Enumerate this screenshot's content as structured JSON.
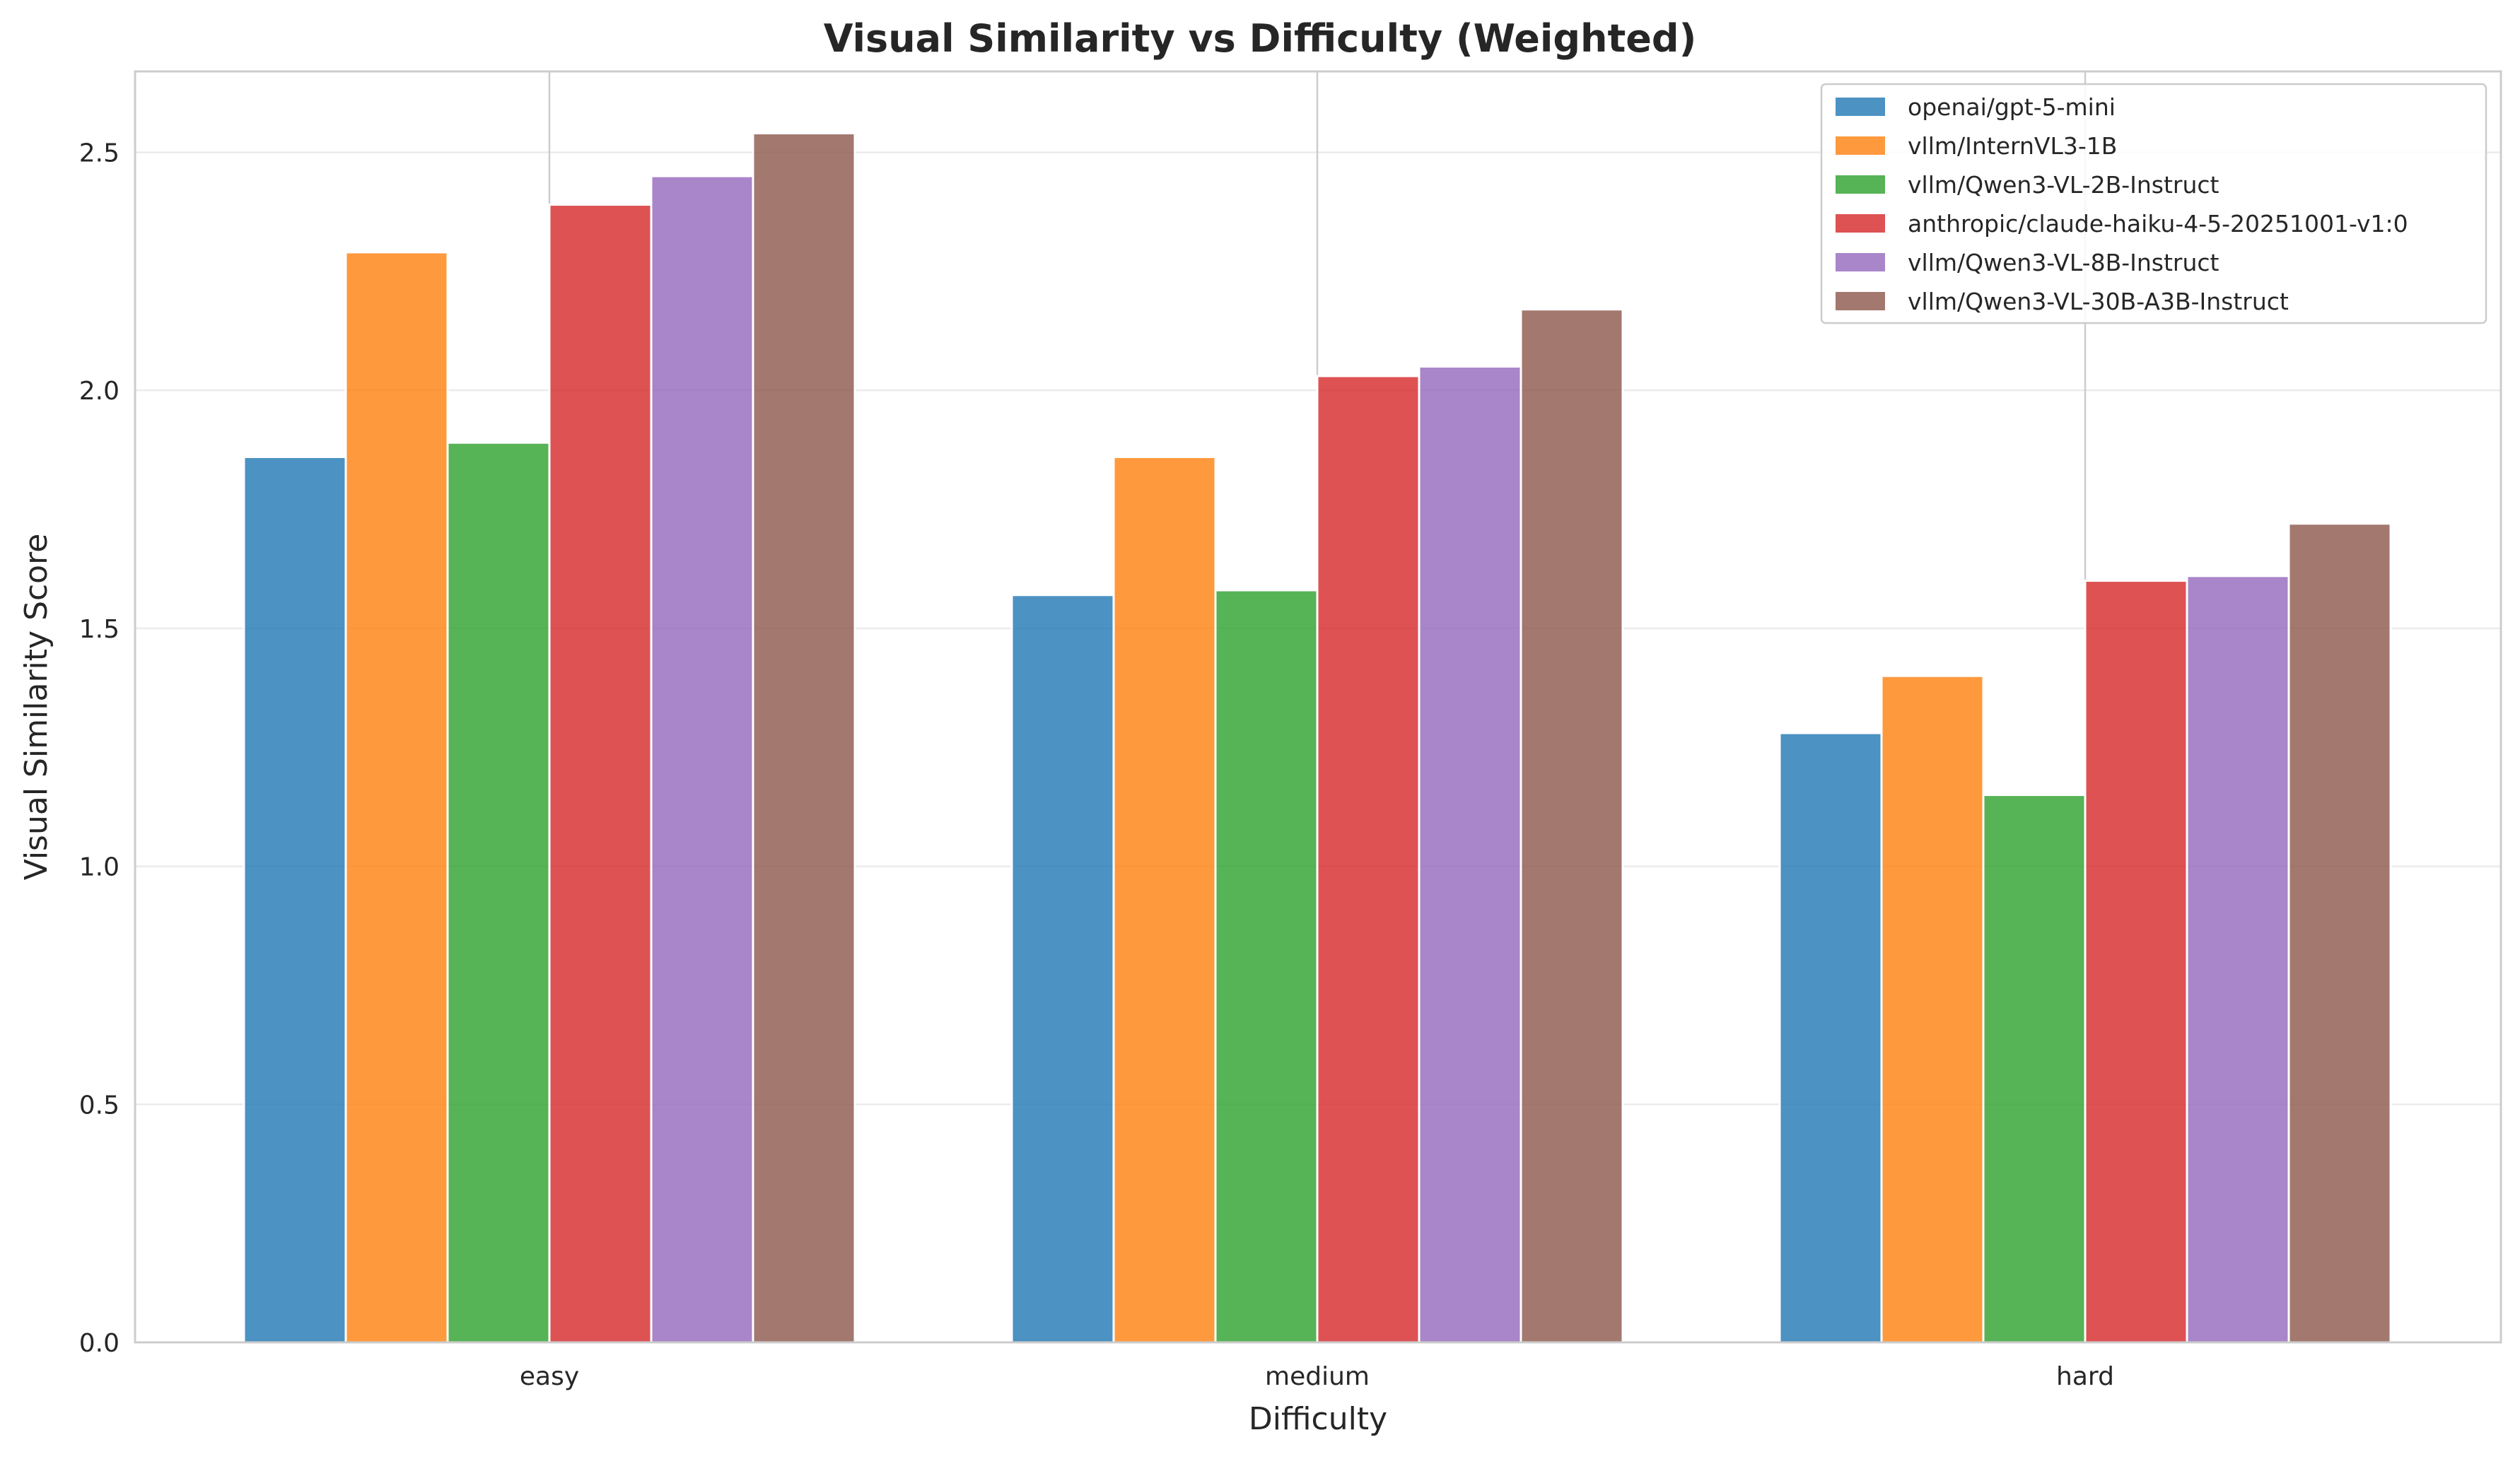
{
  "chart_data": {
    "type": "bar",
    "title": "Visual Similarity vs Difficulty (Weighted)",
    "xlabel": "Difficulty",
    "ylabel": "Visual Similarity Score",
    "categories": [
      "easy",
      "medium",
      "hard"
    ],
    "ylim": [
      0,
      2.67
    ],
    "yticks": [
      "0.0",
      "0.5",
      "1.0",
      "1.5",
      "2.0",
      "2.5"
    ],
    "grid": true,
    "legend_position": "top-right",
    "series": [
      {
        "name": "openai/gpt-5-mini",
        "color": "#1f77b4",
        "values": [
          1.86,
          1.57,
          1.28
        ]
      },
      {
        "name": "vllm/InternVL3-1B",
        "color": "#ff7f0e",
        "values": [
          2.29,
          1.86,
          1.4
        ]
      },
      {
        "name": "vllm/Qwen3-VL-2B-Instruct",
        "color": "#2ca02c",
        "values": [
          1.89,
          1.58,
          1.15
        ]
      },
      {
        "name": "anthropic/claude-haiku-4-5-20251001-v1:0",
        "color": "#d62728",
        "values": [
          2.39,
          2.03,
          1.6
        ]
      },
      {
        "name": "vllm/Qwen3-VL-8B-Instruct",
        "color": "#9467bd",
        "values": [
          2.45,
          2.05,
          1.61
        ]
      },
      {
        "name": "vllm/Qwen3-VL-30B-A3B-Instruct",
        "color": "#8c564b",
        "values": [
          2.54,
          2.17,
          1.72
        ]
      }
    ]
  }
}
